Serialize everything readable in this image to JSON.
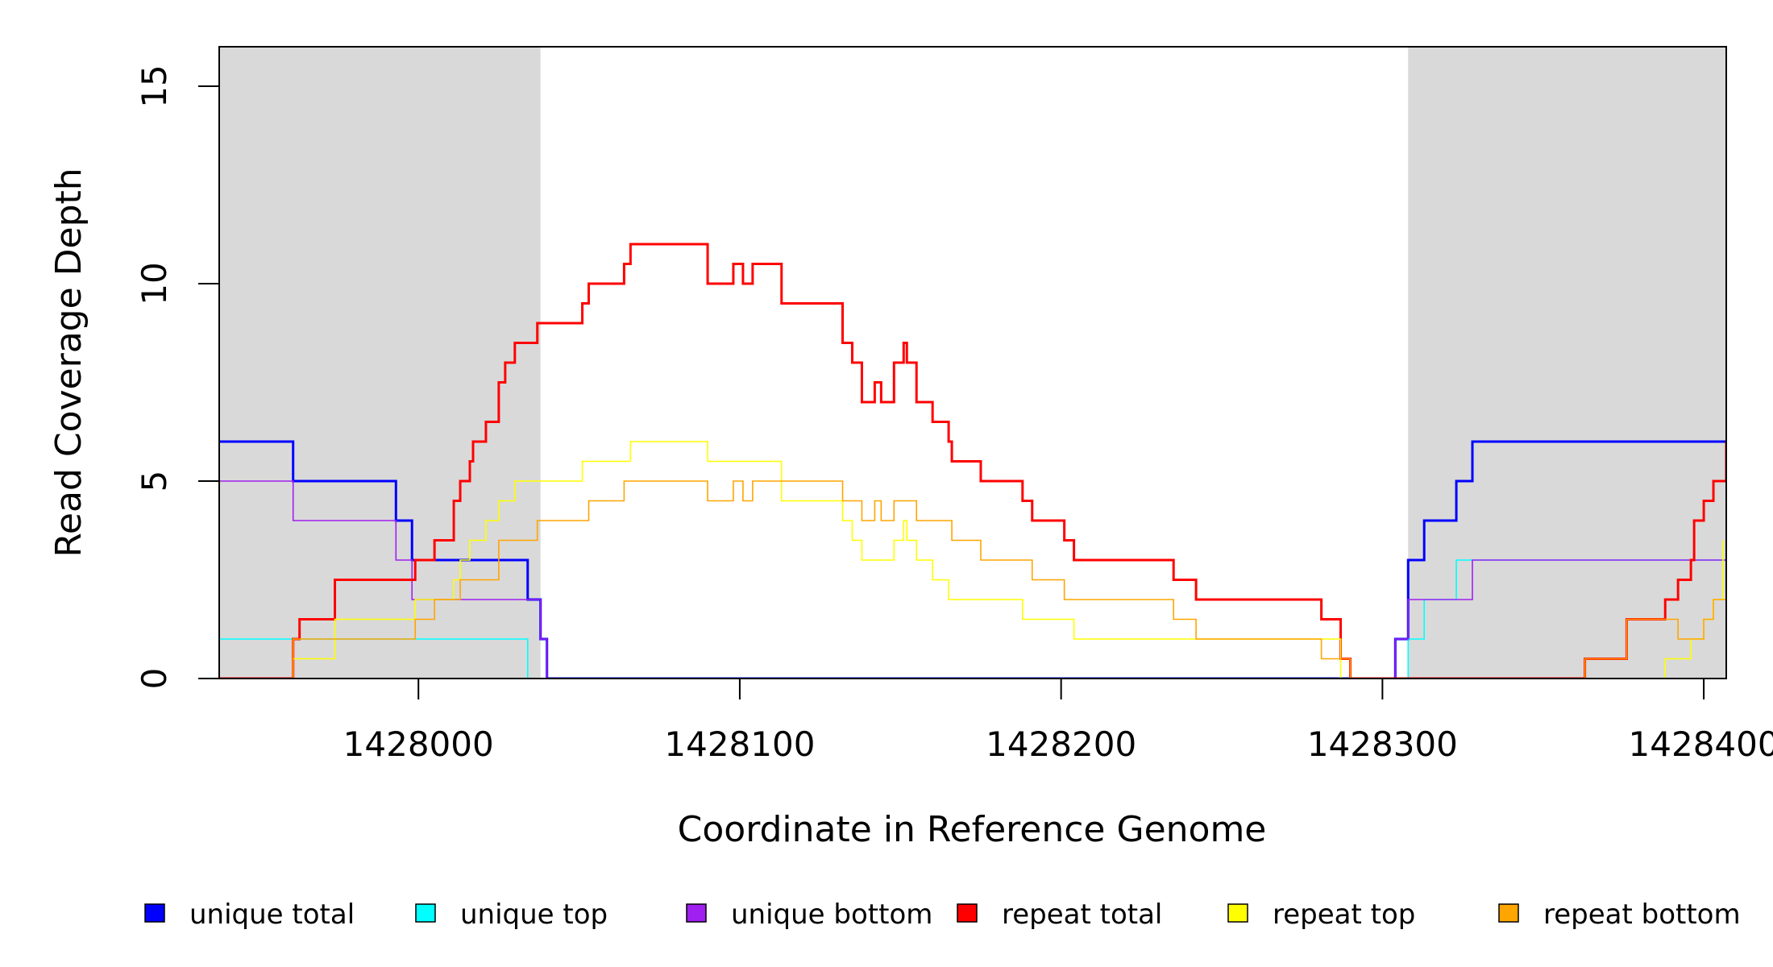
{
  "chart_data": {
    "type": "line",
    "title": "",
    "xlabel": "Coordinate in Reference Genome",
    "ylabel": "Read Coverage Depth",
    "xlim": [
      1427938,
      1428407
    ],
    "ylim": [
      0,
      16
    ],
    "x_ticks": [
      1428000,
      1428100,
      1428200,
      1428300,
      1428400
    ],
    "y_ticks": [
      0,
      5,
      10,
      15
    ],
    "grid": false,
    "shaded_regions": [
      [
        1427938,
        1428038
      ],
      [
        1428308,
        1428407
      ]
    ],
    "shade_color": "#d9d9d9",
    "legend_position": "bottom",
    "series": [
      {
        "name": "unique total",
        "color": "#0000ff",
        "line_width": 3,
        "points": [
          [
            1427938,
            6
          ],
          [
            1427961,
            6
          ],
          [
            1427961,
            5
          ],
          [
            1427993,
            5
          ],
          [
            1427993,
            4
          ],
          [
            1427998,
            4
          ],
          [
            1427998,
            3
          ],
          [
            1428034,
            3
          ],
          [
            1428034,
            2
          ],
          [
            1428038,
            2
          ],
          [
            1428038,
            1
          ],
          [
            1428040,
            1
          ],
          [
            1428040,
            0
          ],
          [
            1428304,
            0
          ],
          [
            1428304,
            1
          ],
          [
            1428308,
            1
          ],
          [
            1428308,
            3
          ],
          [
            1428313,
            3
          ],
          [
            1428313,
            4
          ],
          [
            1428323,
            4
          ],
          [
            1428323,
            5
          ],
          [
            1428328,
            5
          ],
          [
            1428328,
            6
          ],
          [
            1428407,
            6
          ]
        ]
      },
      {
        "name": "unique top",
        "color": "#00ffff",
        "line_width": 1.6,
        "points": [
          [
            1427938,
            1
          ],
          [
            1428034,
            1
          ],
          [
            1428034,
            0
          ],
          [
            1428308,
            0
          ],
          [
            1428308,
            1
          ],
          [
            1428313,
            1
          ],
          [
            1428313,
            2
          ],
          [
            1428323,
            2
          ],
          [
            1428323,
            3
          ],
          [
            1428407,
            3
          ]
        ]
      },
      {
        "name": "unique bottom",
        "color": "#a020f0",
        "line_width": 1.6,
        "points": [
          [
            1427938,
            5
          ],
          [
            1427961,
            5
          ],
          [
            1427961,
            4
          ],
          [
            1427993,
            4
          ],
          [
            1427993,
            3
          ],
          [
            1427998,
            3
          ],
          [
            1427998,
            2
          ],
          [
            1428038,
            2
          ],
          [
            1428038,
            1
          ],
          [
            1428040,
            1
          ],
          [
            1428040,
            0
          ],
          [
            1428304,
            0
          ],
          [
            1428304,
            1
          ],
          [
            1428308,
            1
          ],
          [
            1428308,
            2
          ],
          [
            1428328,
            2
          ],
          [
            1428328,
            3
          ],
          [
            1428407,
            3
          ]
        ]
      },
      {
        "name": "repeat total",
        "color": "#ff0000",
        "line_width": 3,
        "points": [
          [
            1427938,
            0
          ],
          [
            1427961,
            0
          ],
          [
            1427961,
            1
          ],
          [
            1427963,
            1
          ],
          [
            1427963,
            1.5
          ],
          [
            1427974,
            1.5
          ],
          [
            1427974,
            2.5
          ],
          [
            1427999,
            2.5
          ],
          [
            1427999,
            3
          ],
          [
            1428005,
            3
          ],
          [
            1428005,
            3.5
          ],
          [
            1428011,
            3.5
          ],
          [
            1428011,
            4.5
          ],
          [
            1428013,
            4.5
          ],
          [
            1428013,
            5
          ],
          [
            1428016,
            5
          ],
          [
            1428016,
            5.5
          ],
          [
            1428017,
            5.5
          ],
          [
            1428017,
            6
          ],
          [
            1428021,
            6
          ],
          [
            1428021,
            6.5
          ],
          [
            1428025,
            6.5
          ],
          [
            1428025,
            7.5
          ],
          [
            1428027,
            7.5
          ],
          [
            1428027,
            8
          ],
          [
            1428030,
            8
          ],
          [
            1428030,
            8.5
          ],
          [
            1428037,
            8.5
          ],
          [
            1428037,
            9
          ],
          [
            1428051,
            9
          ],
          [
            1428051,
            9.5
          ],
          [
            1428053,
            9.5
          ],
          [
            1428053,
            10
          ],
          [
            1428064,
            10
          ],
          [
            1428064,
            10.5
          ],
          [
            1428066,
            10.5
          ],
          [
            1428066,
            11
          ],
          [
            1428090,
            11
          ],
          [
            1428090,
            10
          ],
          [
            1428098,
            10
          ],
          [
            1428098,
            10.5
          ],
          [
            1428101,
            10.5
          ],
          [
            1428101,
            10
          ],
          [
            1428104,
            10
          ],
          [
            1428104,
            10.5
          ],
          [
            1428113,
            10.5
          ],
          [
            1428113,
            9.5
          ],
          [
            1428132,
            9.5
          ],
          [
            1428132,
            8.5
          ],
          [
            1428135,
            8.5
          ],
          [
            1428135,
            8
          ],
          [
            1428138,
            8
          ],
          [
            1428138,
            7
          ],
          [
            1428142,
            7
          ],
          [
            1428142,
            7.5
          ],
          [
            1428144,
            7.5
          ],
          [
            1428144,
            7
          ],
          [
            1428148,
            7
          ],
          [
            1428148,
            8
          ],
          [
            1428151,
            8
          ],
          [
            1428151,
            8.5
          ],
          [
            1428152,
            8.5
          ],
          [
            1428152,
            8
          ],
          [
            1428155,
            8
          ],
          [
            1428155,
            7
          ],
          [
            1428160,
            7
          ],
          [
            1428160,
            6.5
          ],
          [
            1428165,
            6.5
          ],
          [
            1428165,
            6
          ],
          [
            1428166,
            6
          ],
          [
            1428166,
            5.5
          ],
          [
            1428175,
            5.5
          ],
          [
            1428175,
            5
          ],
          [
            1428188,
            5
          ],
          [
            1428188,
            4.5
          ],
          [
            1428191,
            4.5
          ],
          [
            1428191,
            4
          ],
          [
            1428201,
            4
          ],
          [
            1428201,
            3.5
          ],
          [
            1428204,
            3.5
          ],
          [
            1428204,
            3
          ],
          [
            1428235,
            3
          ],
          [
            1428235,
            2.5
          ],
          [
            1428242,
            2.5
          ],
          [
            1428242,
            2
          ],
          [
            1428281,
            2
          ],
          [
            1428281,
            1.5
          ],
          [
            1428287,
            1.5
          ],
          [
            1428287,
            0.5
          ],
          [
            1428290,
            0.5
          ],
          [
            1428290,
            0
          ],
          [
            1428363,
            0
          ],
          [
            1428363,
            0.5
          ],
          [
            1428376,
            0.5
          ],
          [
            1428376,
            1.5
          ],
          [
            1428388,
            1.5
          ],
          [
            1428388,
            2
          ],
          [
            1428392,
            2
          ],
          [
            1428392,
            2.5
          ],
          [
            1428396,
            2.5
          ],
          [
            1428396,
            3
          ],
          [
            1428397,
            3
          ],
          [
            1428397,
            4
          ],
          [
            1428400,
            4
          ],
          [
            1428400,
            4.5
          ],
          [
            1428403,
            4.5
          ],
          [
            1428403,
            5
          ],
          [
            1428407,
            5
          ],
          [
            1428407,
            6
          ]
        ]
      },
      {
        "name": "repeat top",
        "color": "#ffff00",
        "line_width": 1.6,
        "points": [
          [
            1427938,
            0
          ],
          [
            1427961,
            0
          ],
          [
            1427961,
            0.5
          ],
          [
            1427974,
            0.5
          ],
          [
            1427974,
            1.5
          ],
          [
            1427999,
            1.5
          ],
          [
            1427999,
            2
          ],
          [
            1428011,
            2
          ],
          [
            1428011,
            2.5
          ],
          [
            1428013,
            2.5
          ],
          [
            1428013,
            3
          ],
          [
            1428016,
            3
          ],
          [
            1428016,
            3.5
          ],
          [
            1428021,
            3.5
          ],
          [
            1428021,
            4
          ],
          [
            1428025,
            4
          ],
          [
            1428025,
            4.5
          ],
          [
            1428030,
            4.5
          ],
          [
            1428030,
            5
          ],
          [
            1428051,
            5
          ],
          [
            1428051,
            5.5
          ],
          [
            1428066,
            5.5
          ],
          [
            1428066,
            6
          ],
          [
            1428090,
            6
          ],
          [
            1428090,
            5.5
          ],
          [
            1428113,
            5.5
          ],
          [
            1428113,
            4.5
          ],
          [
            1428132,
            4.5
          ],
          [
            1428132,
            4
          ],
          [
            1428135,
            4
          ],
          [
            1428135,
            3.5
          ],
          [
            1428138,
            3.5
          ],
          [
            1428138,
            3
          ],
          [
            1428148,
            3
          ],
          [
            1428148,
            3.5
          ],
          [
            1428151,
            3.5
          ],
          [
            1428151,
            4
          ],
          [
            1428152,
            4
          ],
          [
            1428152,
            3.5
          ],
          [
            1428155,
            3.5
          ],
          [
            1428155,
            3
          ],
          [
            1428160,
            3
          ],
          [
            1428160,
            2.5
          ],
          [
            1428165,
            2.5
          ],
          [
            1428165,
            2
          ],
          [
            1428188,
            2
          ],
          [
            1428188,
            1.5
          ],
          [
            1428204,
            1.5
          ],
          [
            1428204,
            1
          ],
          [
            1428287,
            1
          ],
          [
            1428287,
            0
          ],
          [
            1428388,
            0
          ],
          [
            1428388,
            0.5
          ],
          [
            1428396,
            0.5
          ],
          [
            1428396,
            1
          ],
          [
            1428400,
            1
          ],
          [
            1428400,
            1.5
          ],
          [
            1428403,
            1.5
          ],
          [
            1428403,
            2
          ],
          [
            1428406,
            2
          ],
          [
            1428406,
            3.5
          ]
        ]
      },
      {
        "name": "repeat bottom",
        "color": "#ffa500",
        "line_width": 1.6,
        "points": [
          [
            1427938,
            0
          ],
          [
            1427961,
            0
          ],
          [
            1427961,
            1
          ],
          [
            1427999,
            1
          ],
          [
            1427999,
            1.5
          ],
          [
            1428005,
            1.5
          ],
          [
            1428005,
            2
          ],
          [
            1428013,
            2
          ],
          [
            1428013,
            2.5
          ],
          [
            1428025,
            2.5
          ],
          [
            1428025,
            3.5
          ],
          [
            1428037,
            3.5
          ],
          [
            1428037,
            4
          ],
          [
            1428053,
            4
          ],
          [
            1428053,
            4.5
          ],
          [
            1428064,
            4.5
          ],
          [
            1428064,
            5
          ],
          [
            1428090,
            5
          ],
          [
            1428090,
            4.5
          ],
          [
            1428098,
            4.5
          ],
          [
            1428098,
            5
          ],
          [
            1428101,
            5
          ],
          [
            1428101,
            4.5
          ],
          [
            1428104,
            4.5
          ],
          [
            1428104,
            5
          ],
          [
            1428132,
            5
          ],
          [
            1428132,
            4.5
          ],
          [
            1428138,
            4.5
          ],
          [
            1428138,
            4
          ],
          [
            1428142,
            4
          ],
          [
            1428142,
            4.5
          ],
          [
            1428144,
            4.5
          ],
          [
            1428144,
            4
          ],
          [
            1428148,
            4
          ],
          [
            1428148,
            4.5
          ],
          [
            1428155,
            4.5
          ],
          [
            1428155,
            4
          ],
          [
            1428166,
            4
          ],
          [
            1428166,
            3.5
          ],
          [
            1428175,
            3.5
          ],
          [
            1428175,
            3
          ],
          [
            1428191,
            3
          ],
          [
            1428191,
            2.5
          ],
          [
            1428201,
            2.5
          ],
          [
            1428201,
            2
          ],
          [
            1428235,
            2
          ],
          [
            1428235,
            1.5
          ],
          [
            1428242,
            1.5
          ],
          [
            1428242,
            1
          ],
          [
            1428281,
            1
          ],
          [
            1428281,
            0.5
          ],
          [
            1428290,
            0.5
          ],
          [
            1428290,
            0
          ],
          [
            1428363,
            0
          ],
          [
            1428363,
            0.5
          ],
          [
            1428376,
            0.5
          ],
          [
            1428376,
            1.5
          ],
          [
            1428392,
            1.5
          ],
          [
            1428392,
            1
          ],
          [
            1428400,
            1
          ],
          [
            1428400,
            1.5
          ],
          [
            1428403,
            1.5
          ],
          [
            1428403,
            2
          ],
          [
            1428407,
            2
          ]
        ]
      }
    ]
  }
}
